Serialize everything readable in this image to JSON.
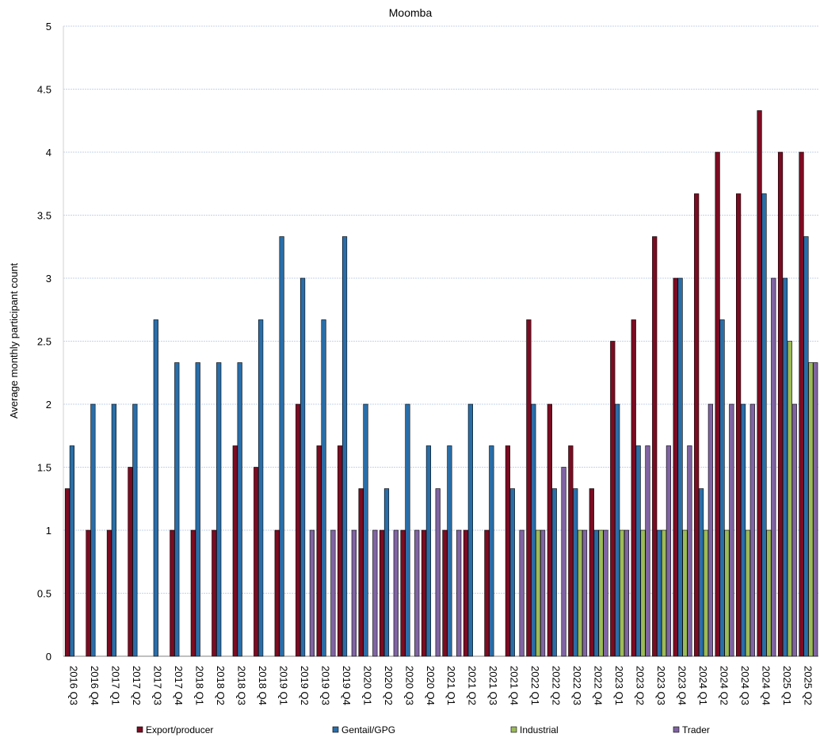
{
  "chart_data": {
    "type": "bar",
    "title": "Moomba",
    "xlabel": "",
    "ylabel": "Average monthly participant count",
    "ylim": [
      0,
      5
    ],
    "yticks": [
      "0",
      "0.5",
      "1",
      "1.5",
      "2",
      "2.5",
      "3",
      "3.5",
      "4",
      "4.5",
      "5"
    ],
    "grid": true,
    "legend_position": "bottom",
    "categories": [
      "2016 Q3",
      "2016 Q4",
      "2017 Q1",
      "2017 Q2",
      "2017 Q3",
      "2017 Q4",
      "2018 Q1",
      "2018 Q2",
      "2018 Q3",
      "2018 Q4",
      "2019 Q1",
      "2019 Q2",
      "2019 Q3",
      "2019 Q4",
      "2020 Q1",
      "2020 Q2",
      "2020 Q3",
      "2020 Q4",
      "2021 Q1",
      "2021 Q2",
      "2021 Q3",
      "2021 Q4",
      "2022 Q1",
      "2022 Q2",
      "2022 Q3",
      "2022 Q4",
      "2023 Q1",
      "2023 Q2",
      "2023 Q3",
      "2023 Q4",
      "2024 Q1",
      "2024 Q2",
      "2024 Q3",
      "2024 Q4",
      "2025 Q1",
      "2025 Q2"
    ],
    "series": [
      {
        "name": "Export/producer",
        "color": "#7b0c22",
        "values": [
          1.33,
          1,
          1,
          1.5,
          null,
          1,
          1,
          1,
          1.67,
          1.5,
          1,
          2,
          1.67,
          1.67,
          1.33,
          1,
          1,
          1,
          1,
          1,
          1,
          1.67,
          2.67,
          2,
          1.67,
          1.33,
          2.5,
          2.67,
          3.33,
          3,
          3.67,
          4,
          3.67,
          4.33,
          4,
          4
        ]
      },
      {
        "name": "Gentail/GPG",
        "color": "#2a6ea8",
        "values": [
          1.67,
          2,
          2,
          2,
          2.67,
          2.33,
          2.33,
          2.33,
          2.33,
          2.67,
          3.33,
          3,
          2.67,
          3.33,
          2,
          1.33,
          2,
          1.67,
          1.67,
          2,
          1.67,
          1.33,
          2,
          1.33,
          1.33,
          1,
          2,
          1.67,
          1,
          3,
          1.33,
          2.67,
          2,
          3.67,
          3,
          3.33
        ]
      },
      {
        "name": "Industrial",
        "color": "#9bbb59",
        "values": [
          null,
          null,
          null,
          null,
          null,
          null,
          null,
          null,
          null,
          null,
          null,
          null,
          null,
          null,
          null,
          null,
          null,
          null,
          null,
          null,
          null,
          null,
          1,
          null,
          1,
          1,
          1,
          1,
          1,
          1,
          1,
          1,
          1,
          1,
          2.5,
          2.33
        ]
      },
      {
        "name": "Trader",
        "color": "#8064a2",
        "values": [
          null,
          null,
          null,
          null,
          null,
          null,
          null,
          null,
          null,
          null,
          null,
          1,
          1,
          1,
          1,
          1,
          1,
          1.33,
          1,
          null,
          null,
          1,
          1,
          1.5,
          1,
          1,
          1,
          1.67,
          1.67,
          1.67,
          2,
          2,
          2,
          3,
          2,
          2.33
        ]
      }
    ]
  }
}
